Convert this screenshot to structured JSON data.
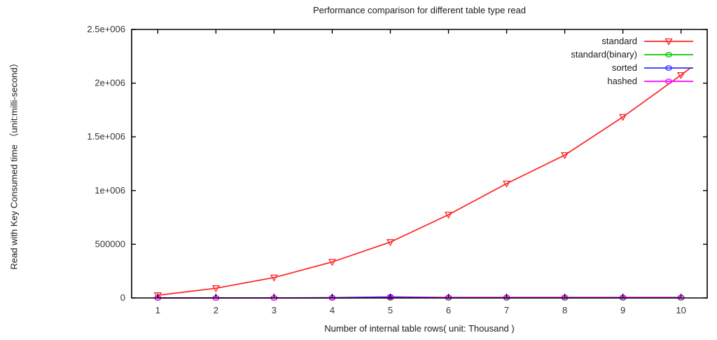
{
  "page": {
    "background": "#ffffff",
    "text_color": "#1a1a1a"
  },
  "chart_data": {
    "type": "line",
    "title": "Performance comparison for different table type read",
    "xlabel": "Number of internal table rows( unit: Thousand )",
    "ylabel": "Read with Key Consumed time （unit:milli-second）",
    "x": [
      1,
      2,
      3,
      4,
      5,
      6,
      7,
      8,
      9,
      10
    ],
    "x_tick_labels": [
      "1",
      "2",
      "3",
      "4",
      "5",
      "6",
      "7",
      "8",
      "9",
      "10"
    ],
    "y_ticks": [
      {
        "value": 0,
        "label": "0"
      },
      {
        "value": 500000,
        "label": "500000"
      },
      {
        "value": 1000000,
        "label": "1e+006"
      },
      {
        "value": 1500000,
        "label": "1.5e+006"
      },
      {
        "value": 2000000,
        "label": "2e+006"
      },
      {
        "value": 2500000,
        "label": "2.5e+006"
      }
    ],
    "xlim": [
      0.55,
      10.45
    ],
    "ylim": [
      0,
      2500000
    ],
    "grid": false,
    "legend_position": "top-right-inside",
    "axis_color": "#000000",
    "tick_label_color": "#333333",
    "series": [
      {
        "name": "standard",
        "color": "#ff2222",
        "marker": "triangle-down",
        "values": [
          25000,
          90000,
          190000,
          335000,
          520000,
          775000,
          1065000,
          1330000,
          1685000,
          2075000
        ],
        "line_end_extension": {
          "x": 10.17,
          "y": 2145000
        }
      },
      {
        "name": "standard(binary)",
        "color": "#00cc00",
        "marker": "circle",
        "values": [
          0,
          0,
          0,
          0,
          0,
          0,
          0,
          0,
          0,
          0
        ]
      },
      {
        "name": "sorted",
        "color": "#3333ff",
        "marker": "circle",
        "values": [
          0,
          0,
          0,
          3000,
          10000,
          4000,
          4000,
          4000,
          4000,
          4000
        ]
      },
      {
        "name": "hashed",
        "color": "#ff00ff",
        "marker": "circle",
        "values": [
          0,
          0,
          0,
          0,
          4000,
          5000,
          5000,
          5000,
          5000,
          5000
        ]
      }
    ]
  }
}
